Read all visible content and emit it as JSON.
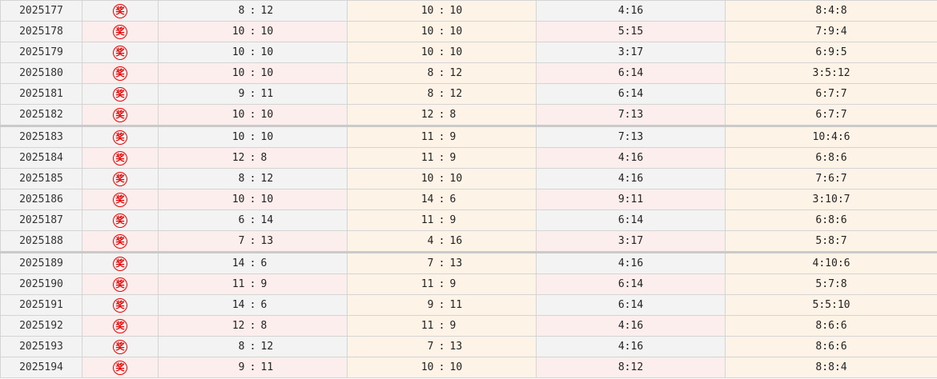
{
  "icon": {
    "name": "prize-icon",
    "glyph": "奖",
    "color": "#ee0000"
  },
  "rows": [
    {
      "issue": "2025177",
      "a": [
        "8",
        "12"
      ],
      "b": [
        "10",
        "10"
      ],
      "c": "4:16",
      "d": "8:4:8"
    },
    {
      "issue": "2025178",
      "a": [
        "10",
        "10"
      ],
      "b": [
        "10",
        "10"
      ],
      "c": "5:15",
      "d": "7:9:4"
    },
    {
      "issue": "2025179",
      "a": [
        "10",
        "10"
      ],
      "b": [
        "10",
        "10"
      ],
      "c": "3:17",
      "d": "6:9:5"
    },
    {
      "issue": "2025180",
      "a": [
        "10",
        "10"
      ],
      "b": [
        "8",
        "12"
      ],
      "c": "6:14",
      "d": "3:5:12"
    },
    {
      "issue": "2025181",
      "a": [
        "9",
        "11"
      ],
      "b": [
        "8",
        "12"
      ],
      "c": "6:14",
      "d": "6:7:7"
    },
    {
      "issue": "2025182",
      "a": [
        "10",
        "10"
      ],
      "b": [
        "12",
        "8"
      ],
      "c": "7:13",
      "d": "6:7:7"
    },
    {
      "issue": "2025183",
      "a": [
        "10",
        "10"
      ],
      "b": [
        "11",
        "9"
      ],
      "c": "7:13",
      "d": "10:4:6"
    },
    {
      "issue": "2025184",
      "a": [
        "12",
        "8"
      ],
      "b": [
        "11",
        "9"
      ],
      "c": "4:16",
      "d": "6:8:6"
    },
    {
      "issue": "2025185",
      "a": [
        "8",
        "12"
      ],
      "b": [
        "10",
        "10"
      ],
      "c": "4:16",
      "d": "7:6:7"
    },
    {
      "issue": "2025186",
      "a": [
        "10",
        "10"
      ],
      "b": [
        "14",
        "6"
      ],
      "c": "9:11",
      "d": "3:10:7"
    },
    {
      "issue": "2025187",
      "a": [
        "6",
        "14"
      ],
      "b": [
        "11",
        "9"
      ],
      "c": "6:14",
      "d": "6:8:6"
    },
    {
      "issue": "2025188",
      "a": [
        "7",
        "13"
      ],
      "b": [
        "4",
        "16"
      ],
      "c": "3:17",
      "d": "5:8:7"
    },
    {
      "issue": "2025189",
      "a": [
        "14",
        "6"
      ],
      "b": [
        "7",
        "13"
      ],
      "c": "4:16",
      "d": "4:10:6"
    },
    {
      "issue": "2025190",
      "a": [
        "11",
        "9"
      ],
      "b": [
        "11",
        "9"
      ],
      "c": "6:14",
      "d": "5:7:8"
    },
    {
      "issue": "2025191",
      "a": [
        "14",
        "6"
      ],
      "b": [
        "9",
        "11"
      ],
      "c": "6:14",
      "d": "5:5:10"
    },
    {
      "issue": "2025192",
      "a": [
        "12",
        "8"
      ],
      "b": [
        "11",
        "9"
      ],
      "c": "4:16",
      "d": "8:6:6"
    },
    {
      "issue": "2025193",
      "a": [
        "8",
        "12"
      ],
      "b": [
        "7",
        "13"
      ],
      "c": "4:16",
      "d": "8:6:6"
    },
    {
      "issue": "2025194",
      "a": [
        "9",
        "11"
      ],
      "b": [
        "10",
        "10"
      ],
      "c": "8:12",
      "d": "8:8:4"
    }
  ]
}
